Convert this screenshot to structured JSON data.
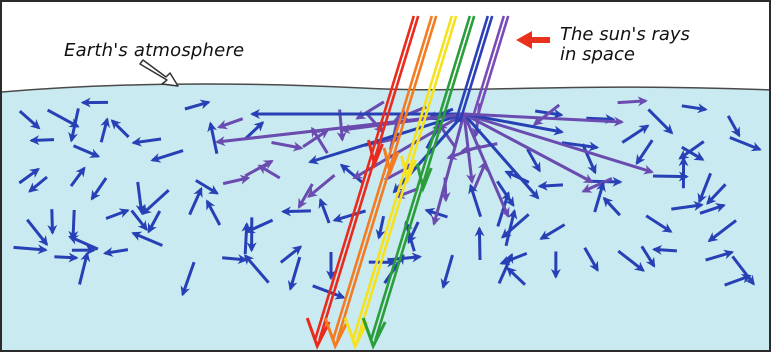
{
  "labels": {
    "atmosphere": "Earth's atmosphere",
    "sun_line1": "The sun's rays",
    "sun_line2": "in space"
  },
  "colors": {
    "space": "#ffffff",
    "atmosphere": "#c9eaf0",
    "atmosphere_edge": "#4a4a4a",
    "scatter_blue": "#2740b5",
    "scatter_purple": "#6a4bb0",
    "pointer_red": "#e8321e"
  },
  "sun_rays": [
    {
      "name": "red-ray",
      "color": "#ea2a1c"
    },
    {
      "name": "orange-ray",
      "color": "#f47b20"
    },
    {
      "name": "yellow-ray",
      "color": "#f5e21c"
    },
    {
      "name": "green-ray",
      "color": "#2a9e3a"
    },
    {
      "name": "blue-ray",
      "color": "#2a3fb8"
    },
    {
      "name": "violet-ray",
      "color": "#7a4bb8"
    }
  ]
}
